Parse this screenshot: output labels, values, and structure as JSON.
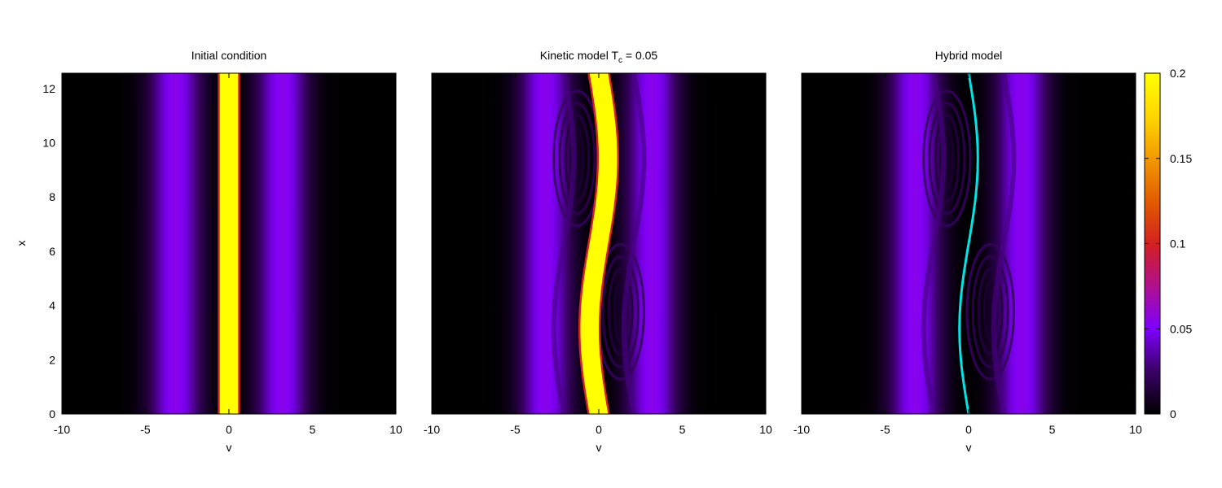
{
  "chart_data": [
    {
      "type": "heatmap",
      "title": "Initial condition",
      "xlabel": "v",
      "ylabel": "x",
      "xlim": [
        -10,
        10
      ],
      "ylim": [
        0,
        12.566
      ],
      "xticks": [
        "-10",
        "-5",
        "0",
        "5",
        "10"
      ],
      "yticks": [
        "0",
        "2",
        "4",
        "6",
        "8",
        "10",
        "12"
      ],
      "field": {
        "beams": [
          {
            "center": -3.2,
            "width": 1.05,
            "amplitude": 0.055
          },
          {
            "center": 3.2,
            "width": 1.05,
            "amplitude": 0.055
          }
        ],
        "core": {
          "shape": "band",
          "center": 0,
          "half_width": 0.55,
          "amplitude": 0.2,
          "perturbation": 0
        }
      }
    },
    {
      "type": "heatmap",
      "title_main": "Kinetic model T",
      "title_sub": "c",
      "title_tail": " = 0.05",
      "xlabel": "v",
      "xlim": [
        -10,
        10
      ],
      "ylim": [
        0,
        12.566
      ],
      "xticks": [
        "-10",
        "-5",
        "0",
        "5",
        "10"
      ],
      "field": {
        "beams": [
          {
            "center": -3.2,
            "width": 1.05,
            "amplitude": 0.055,
            "perturbation": 0.6
          },
          {
            "center": 3.2,
            "width": 1.05,
            "amplitude": 0.055,
            "perturbation": 0.6
          }
        ],
        "core": {
          "shape": "band",
          "center": 0,
          "half_width": 0.55,
          "amplitude": 0.2,
          "perturbation": 0.55
        },
        "vortices": true
      }
    },
    {
      "type": "heatmap",
      "title": "Hybrid model",
      "xlabel": "v",
      "xlim": [
        -10,
        10
      ],
      "ylim": [
        0,
        12.566
      ],
      "xticks": [
        "-10",
        "-5",
        "0",
        "5",
        "10"
      ],
      "field": {
        "beams": [
          {
            "center": -3.2,
            "width": 1.05,
            "amplitude": 0.055,
            "perturbation": 0.6
          },
          {
            "center": 3.2,
            "width": 1.05,
            "amplitude": 0.055,
            "perturbation": 0.6
          }
        ],
        "core": {
          "shape": "line",
          "center": 0,
          "amplitude": 0,
          "perturbation": 0.55,
          "color": "#00e5e5"
        },
        "vortices": true
      }
    }
  ],
  "colorbar": {
    "min": 0,
    "max": 0.2,
    "ticks": [
      {
        "value": 0,
        "label": "0"
      },
      {
        "value": 0.05,
        "label": "0.05"
      },
      {
        "value": 0.1,
        "label": "0.1"
      },
      {
        "value": 0.15,
        "label": "0.15"
      },
      {
        "value": 0.2,
        "label": "0.2"
      }
    ],
    "colormap": [
      "#000000",
      "#3a0066",
      "#7f00ff",
      "#b0108f",
      "#d42020",
      "#e25c00",
      "#f29a00",
      "#ffd700",
      "#ffff00"
    ]
  }
}
